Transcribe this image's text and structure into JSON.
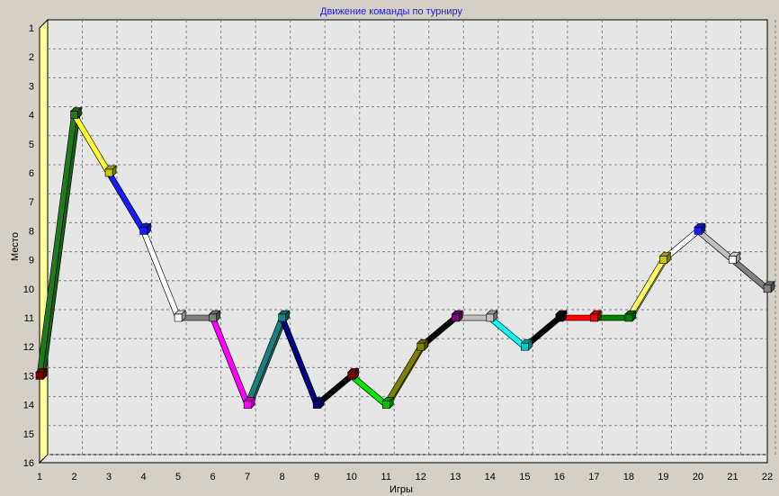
{
  "chart_data": {
    "type": "line",
    "title": "Движение команды по турниру",
    "xlabel": "Игры",
    "ylabel": "Место",
    "x": [
      1,
      2,
      3,
      4,
      5,
      6,
      7,
      8,
      9,
      10,
      11,
      12,
      13,
      14,
      15,
      16,
      17,
      18,
      19,
      20,
      21,
      22
    ],
    "xlim": [
      1,
      22
    ],
    "ylim": [
      1,
      16
    ],
    "y_inverted": true,
    "grid": true,
    "series": [
      {
        "values": [
          13,
          4,
          6,
          8,
          11,
          11,
          14,
          11,
          14,
          13,
          14,
          12,
          11,
          11,
          12,
          11,
          11,
          11,
          9,
          8,
          9,
          10
        ]
      }
    ],
    "segment_colors": [
      "#1f7a1f",
      "#ffff33",
      "#1a1aff",
      "#ffffff",
      "#808080",
      "#ff00ff",
      "#1a8080",
      "#00007f",
      "#000000",
      "#00e600",
      "#808000",
      "#000000",
      "#c0c0c0",
      "#00ffff",
      "#000000",
      "#ff0000",
      "#008000",
      "#ffff66",
      "#ffffff",
      "#c0c0c0",
      "#808080"
    ],
    "marker_colors": [
      "#800000",
      "#1f7a1f",
      "#c8c800",
      "#1a1aff",
      "#ffffff",
      "#808080",
      "#ff00ff",
      "#1a8080",
      "#000080",
      "#800000",
      "#00c000",
      "#808000",
      "#800080",
      "#c0c0c0",
      "#00c8c8",
      "#000000",
      "#ff0000",
      "#008000",
      "#c8c800",
      "#1a1aff",
      "#ffffff",
      "#808080"
    ],
    "colors": {
      "plot_bg": "#e6e6e6",
      "frame": "#000000",
      "left_wall": "#ffff99",
      "grid": "#808080",
      "title": "#1a1ae6"
    }
  }
}
